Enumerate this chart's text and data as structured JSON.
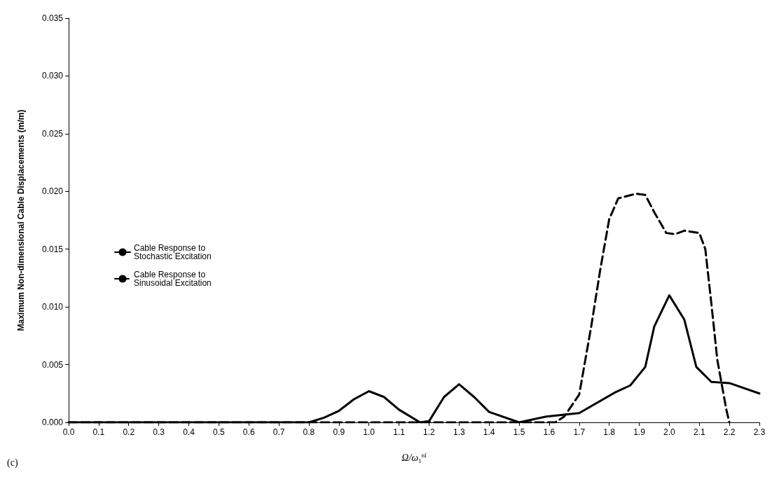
{
  "chart_data": {
    "type": "line",
    "xlabel": "Ω/ω$_{1}$$^{nl}$",
    "ylabel": "Maximum Non-dimensional Cable Displacements (m/m)",
    "annotations": [
      "(c)"
    ],
    "xlim": [
      0,
      2.3
    ],
    "xticks": [
      {
        "value": 0,
        "label": "0.0"
      },
      0.1,
      0.2,
      0.3,
      0.4,
      0.5,
      0.6,
      0.7,
      0.8,
      0.9,
      {
        "value": 1,
        "label": "1.0"
      },
      1.1,
      1.2,
      1.3,
      1.4,
      1.5,
      1.6,
      1.7,
      1.8,
      1.9,
      {
        "value": 2,
        "label": "2.0"
      },
      2.1,
      2.2,
      2.3
    ],
    "ylim": [
      0,
      0.035
    ],
    "yticks": [
      {
        "value": 0,
        "label": "0.000"
      },
      {
        "value": 0.005,
        "label": "0.005"
      },
      {
        "value": 0.01,
        "label": "0.010"
      },
      {
        "value": 0.015,
        "label": "0.015"
      },
      {
        "value": 0.02,
        "label": "0.020"
      },
      {
        "value": 0.025,
        "label": "0.025"
      },
      {
        "value": 0.03,
        "label": "0.030"
      },
      {
        "value": 0.035,
        "label": "0.035"
      }
    ],
    "grid": false,
    "legend": "left",
    "marker": "none",
    "series": [
      {
        "name": "Cable Response to\nStochastic Excitation",
        "color": "#000000",
        "line_style": "solid",
        "x": [
          0,
          0.8,
          0.85,
          0.9,
          0.95,
          1.0,
          1.05,
          1.1,
          1.17,
          1.2,
          1.25,
          1.3,
          1.35,
          1.4,
          1.5,
          1.59,
          1.7,
          1.82,
          1.87,
          1.92,
          1.95,
          2.0,
          2.05,
          2.09,
          2.14,
          2.2,
          2.3
        ],
        "values": [
          0,
          0,
          0.0004,
          0.001,
          0.002,
          0.0027,
          0.0022,
          0.0011,
          0,
          0.0001,
          0.0022,
          0.0033,
          0.0022,
          0.0009,
          0,
          0.0005,
          0.0008,
          0.0026,
          0.0032,
          0.0048,
          0.0083,
          0.011,
          0.0089,
          0.0048,
          0.0035,
          0.0034,
          0.0025
        ]
      },
      {
        "name": "Cable Response to\nSinusoidal Excitation",
        "color": "#000000",
        "line_style": "dashed",
        "x": [
          0,
          1.62,
          1.65,
          1.7,
          1.74,
          1.77,
          1.8,
          1.83,
          1.89,
          1.92,
          1.95,
          1.99,
          2.02,
          2.05,
          2.1,
          2.12,
          2.14,
          2.16,
          2.19,
          2.2
        ],
        "values": [
          0,
          0,
          0.0005,
          0.0024,
          0.0083,
          0.0132,
          0.0176,
          0.0194,
          0.0198,
          0.0197,
          0.0182,
          0.0164,
          0.0163,
          0.0166,
          0.0164,
          0.015,
          0.0103,
          0.0054,
          0.0011,
          0
        ]
      }
    ]
  }
}
